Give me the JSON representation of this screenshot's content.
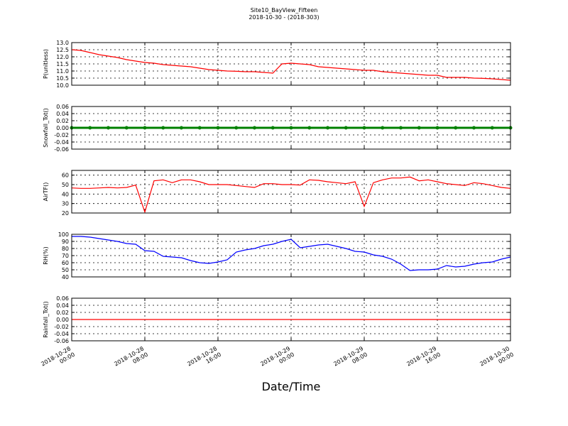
{
  "chart_data": [
    {
      "type": "line",
      "title": "Site10_BayView_Fifteen",
      "subtitle": "2018-10-30 - (2018-303)",
      "y_label": "P(unitless)",
      "color": "#ff0000",
      "x": [
        "2018-10-28 00:00",
        "2018-10-28 01:00",
        "2018-10-28 02:00",
        "2018-10-28 03:00",
        "2018-10-28 04:00",
        "2018-10-28 05:00",
        "2018-10-28 06:00",
        "2018-10-28 07:00",
        "2018-10-28 08:00",
        "2018-10-28 09:00",
        "2018-10-28 10:00",
        "2018-10-28 11:00",
        "2018-10-28 12:00",
        "2018-10-28 13:00",
        "2018-10-28 14:00",
        "2018-10-28 15:00",
        "2018-10-28 16:00",
        "2018-10-28 17:00",
        "2018-10-28 18:00",
        "2018-10-28 19:00",
        "2018-10-28 20:00",
        "2018-10-28 21:00",
        "2018-10-28 22:00",
        "2018-10-28 23:00",
        "2018-10-29 00:00",
        "2018-10-29 01:00",
        "2018-10-29 02:00",
        "2018-10-29 03:00",
        "2018-10-29 04:00",
        "2018-10-29 05:00",
        "2018-10-29 06:00",
        "2018-10-29 07:00",
        "2018-10-29 08:00",
        "2018-10-29 09:00",
        "2018-10-29 10:00",
        "2018-10-29 11:00",
        "2018-10-29 12:00",
        "2018-10-29 13:00",
        "2018-10-29 14:00",
        "2018-10-29 15:00",
        "2018-10-29 16:00",
        "2018-10-29 17:00",
        "2018-10-29 18:00",
        "2018-10-29 19:00",
        "2018-10-29 20:00",
        "2018-10-29 21:00",
        "2018-10-29 22:00",
        "2018-10-29 23:00",
        "2018-10-30 00:00"
      ],
      "values": [
        12.5,
        12.45,
        12.3,
        12.15,
        12.05,
        11.95,
        11.8,
        11.7,
        11.6,
        11.55,
        11.45,
        11.4,
        11.35,
        11.3,
        11.2,
        11.1,
        11.05,
        11.0,
        10.98,
        10.95,
        10.95,
        10.9,
        10.85,
        11.5,
        11.55,
        11.5,
        11.45,
        11.3,
        11.25,
        11.2,
        11.15,
        11.1,
        11.05,
        11.05,
        10.95,
        10.9,
        10.85,
        10.8,
        10.75,
        10.7,
        10.7,
        10.55,
        10.55,
        10.55,
        10.5,
        10.48,
        10.45,
        10.4,
        10.35
      ],
      "xlim": [
        "2018-10-28 00:00",
        "2018-10-30 00:00"
      ],
      "xticks": [
        "2018-10-28 00:00",
        "2018-10-28 08:00",
        "2018-10-28 16:00",
        "2018-10-29 00:00",
        "2018-10-29 08:00",
        "2018-10-29 16:00",
        "2018-10-30 00:00"
      ],
      "ylim": [
        10,
        13
      ],
      "yticks": [
        {
          "value": 10,
          "label": "10.0"
        },
        10.5,
        {
          "value": 11,
          "label": "11.0"
        },
        11.5,
        {
          "value": 12,
          "label": "12.0"
        },
        12.5,
        {
          "value": 13,
          "label": "13.0"
        }
      ],
      "grid": true
    },
    {
      "type": "line",
      "y_label": "Snowfall_Tot()",
      "color": "#008000",
      "markers": true,
      "x": [
        "2018-10-28 00:00",
        "2018-10-28 02:00",
        "2018-10-28 04:00",
        "2018-10-28 06:00",
        "2018-10-28 08:00",
        "2018-10-28 10:00",
        "2018-10-28 12:00",
        "2018-10-28 14:00",
        "2018-10-28 16:00",
        "2018-10-28 18:00",
        "2018-10-28 20:00",
        "2018-10-28 22:00",
        "2018-10-29 00:00",
        "2018-10-29 02:00",
        "2018-10-29 04:00",
        "2018-10-29 06:00",
        "2018-10-29 08:00",
        "2018-10-29 10:00",
        "2018-10-29 12:00",
        "2018-10-29 14:00",
        "2018-10-29 16:00",
        "2018-10-29 18:00",
        "2018-10-29 20:00",
        "2018-10-29 22:00",
        "2018-10-30 00:00"
      ],
      "values": [
        0,
        0,
        0,
        0,
        0,
        0,
        0,
        0,
        0,
        0,
        0,
        0,
        0,
        0,
        0,
        0,
        0,
        0,
        0,
        0,
        0,
        0,
        0,
        0,
        0
      ],
      "xlim": [
        "2018-10-28 00:00",
        "2018-10-30 00:00"
      ],
      "xticks": [
        "2018-10-28 00:00",
        "2018-10-28 08:00",
        "2018-10-28 16:00",
        "2018-10-29 00:00",
        "2018-10-29 08:00",
        "2018-10-29 16:00",
        "2018-10-30 00:00"
      ],
      "ylim": [
        -0.06,
        0.06
      ],
      "yticks": [
        -0.06,
        -0.04,
        -0.02,
        {
          "value": 0,
          "label": "0.00"
        },
        0.02,
        0.04,
        0.06
      ],
      "grid": true
    },
    {
      "type": "line",
      "y_label": "AirTF()",
      "color": "#ff0000",
      "x": [
        "2018-10-28 00:00",
        "2018-10-28 01:00",
        "2018-10-28 02:00",
        "2018-10-28 03:00",
        "2018-10-28 04:00",
        "2018-10-28 05:00",
        "2018-10-28 06:00",
        "2018-10-28 07:00",
        "2018-10-28 08:00",
        "2018-10-28 09:00",
        "2018-10-28 10:00",
        "2018-10-28 11:00",
        "2018-10-28 12:00",
        "2018-10-28 13:00",
        "2018-10-28 14:00",
        "2018-10-28 15:00",
        "2018-10-28 16:00",
        "2018-10-28 17:00",
        "2018-10-28 18:00",
        "2018-10-28 19:00",
        "2018-10-28 20:00",
        "2018-10-28 21:00",
        "2018-10-28 22:00",
        "2018-10-28 23:00",
        "2018-10-29 00:00",
        "2018-10-29 01:00",
        "2018-10-29 02:00",
        "2018-10-29 03:00",
        "2018-10-29 04:00",
        "2018-10-29 05:00",
        "2018-10-29 06:00",
        "2018-10-29 07:00",
        "2018-10-29 08:00",
        "2018-10-29 09:00",
        "2018-10-29 10:00",
        "2018-10-29 11:00",
        "2018-10-29 12:00",
        "2018-10-29 13:00",
        "2018-10-29 14:00",
        "2018-10-29 15:00",
        "2018-10-29 16:00",
        "2018-10-29 17:00",
        "2018-10-29 18:00",
        "2018-10-29 19:00",
        "2018-10-29 20:00",
        "2018-10-29 21:00",
        "2018-10-29 22:00",
        "2018-10-29 23:00",
        "2018-10-30 00:00"
      ],
      "values": [
        46.5,
        46,
        46,
        46.5,
        47,
        46.5,
        47,
        49.5,
        21,
        54,
        55,
        52,
        55,
        55,
        53,
        50,
        50,
        50,
        49,
        48,
        47,
        51,
        51,
        50,
        50,
        49.5,
        55,
        54.5,
        53,
        52,
        51,
        53,
        27,
        52,
        55,
        57,
        57,
        58,
        54,
        55,
        53,
        51,
        50,
        49,
        52,
        51,
        49,
        47,
        46
      ],
      "xlim": [
        "2018-10-28 00:00",
        "2018-10-30 00:00"
      ],
      "xticks": [
        "2018-10-28 00:00",
        "2018-10-28 08:00",
        "2018-10-28 16:00",
        "2018-10-29 00:00",
        "2018-10-29 08:00",
        "2018-10-29 16:00",
        "2018-10-30 00:00"
      ],
      "ylim": [
        20,
        65
      ],
      "yticks": [
        20,
        30,
        40,
        50,
        60
      ],
      "grid": true
    },
    {
      "type": "line",
      "y_label": "RH(%)",
      "color": "#0000ff",
      "x": [
        "2018-10-28 00:00",
        "2018-10-28 01:00",
        "2018-10-28 02:00",
        "2018-10-28 03:00",
        "2018-10-28 04:00",
        "2018-10-28 05:00",
        "2018-10-28 06:00",
        "2018-10-28 07:00",
        "2018-10-28 08:00",
        "2018-10-28 09:00",
        "2018-10-28 10:00",
        "2018-10-28 11:00",
        "2018-10-28 12:00",
        "2018-10-28 13:00",
        "2018-10-28 14:00",
        "2018-10-28 15:00",
        "2018-10-28 16:00",
        "2018-10-28 17:00",
        "2018-10-28 18:00",
        "2018-10-28 19:00",
        "2018-10-28 20:00",
        "2018-10-28 21:00",
        "2018-10-28 22:00",
        "2018-10-28 23:00",
        "2018-10-29 00:00",
        "2018-10-29 01:00",
        "2018-10-29 02:00",
        "2018-10-29 03:00",
        "2018-10-29 04:00",
        "2018-10-29 05:00",
        "2018-10-29 06:00",
        "2018-10-29 07:00",
        "2018-10-29 08:00",
        "2018-10-29 09:00",
        "2018-10-29 10:00",
        "2018-10-29 11:00",
        "2018-10-29 12:00",
        "2018-10-29 13:00",
        "2018-10-29 14:00",
        "2018-10-29 15:00",
        "2018-10-29 16:00",
        "2018-10-29 17:00",
        "2018-10-29 18:00",
        "2018-10-29 19:00",
        "2018-10-29 20:00",
        "2018-10-29 21:00",
        "2018-10-29 22:00",
        "2018-10-29 23:00",
        "2018-10-30 00:00"
      ],
      "values": [
        97,
        97,
        96,
        94,
        92,
        90,
        87,
        86,
        77,
        76,
        69,
        68,
        67,
        63,
        60,
        59,
        61,
        64,
        75,
        78,
        80,
        84,
        86,
        90,
        93,
        81,
        83,
        85,
        86,
        83,
        80,
        76,
        75,
        71,
        69,
        65,
        58,
        49,
        50,
        50,
        51,
        56,
        54,
        55,
        58,
        60,
        61,
        65,
        68
      ],
      "xlim": [
        "2018-10-28 00:00",
        "2018-10-30 00:00"
      ],
      "xticks": [
        "2018-10-28 00:00",
        "2018-10-28 08:00",
        "2018-10-28 16:00",
        "2018-10-29 00:00",
        "2018-10-29 08:00",
        "2018-10-29 16:00",
        "2018-10-30 00:00"
      ],
      "ylim": [
        40,
        100
      ],
      "yticks": [
        40,
        50,
        60,
        70,
        80,
        90,
        100
      ],
      "grid": true
    },
    {
      "type": "line",
      "y_label": "Rainfall_Tot()",
      "x_label": "Date/Time",
      "color": "#ff0000",
      "x": [
        "2018-10-28 00:00",
        "2018-10-28 02:00",
        "2018-10-28 04:00",
        "2018-10-28 06:00",
        "2018-10-28 08:00",
        "2018-10-28 10:00",
        "2018-10-28 12:00",
        "2018-10-28 14:00",
        "2018-10-28 16:00",
        "2018-10-28 18:00",
        "2018-10-28 20:00",
        "2018-10-28 22:00",
        "2018-10-29 00:00",
        "2018-10-29 02:00",
        "2018-10-29 04:00",
        "2018-10-29 06:00",
        "2018-10-29 08:00",
        "2018-10-29 10:00",
        "2018-10-29 12:00",
        "2018-10-29 14:00",
        "2018-10-29 16:00",
        "2018-10-29 18:00",
        "2018-10-29 20:00",
        "2018-10-29 22:00",
        "2018-10-30 00:00"
      ],
      "values": [
        0,
        0,
        0,
        0,
        0,
        0,
        0,
        0,
        0,
        0,
        0,
        0,
        0,
        0,
        0,
        0,
        0,
        0,
        0,
        0,
        0,
        0,
        0,
        0,
        0
      ],
      "xlim": [
        "2018-10-28 00:00",
        "2018-10-30 00:00"
      ],
      "xticks": [
        {
          "value": "2018-10-28 00:00",
          "label": "2018-10-28\n00:00"
        },
        {
          "value": "2018-10-28 08:00",
          "label": "2018-10-28\n08:00"
        },
        {
          "value": "2018-10-28 16:00",
          "label": "2018-10-28\n16:00"
        },
        {
          "value": "2018-10-29 00:00",
          "label": "2018-10-29\n00:00"
        },
        {
          "value": "2018-10-29 08:00",
          "label": "2018-10-29\n08:00"
        },
        {
          "value": "2018-10-29 16:00",
          "label": "2018-10-29\n16:00"
        },
        {
          "value": "2018-10-30 00:00",
          "label": "2018-10-30\n00:00"
        }
      ],
      "ylim": [
        -0.06,
        0.06
      ],
      "yticks": [
        -0.06,
        -0.04,
        -0.02,
        {
          "value": 0,
          "label": "0.00"
        },
        0.02,
        0.04,
        0.06
      ],
      "grid": true
    }
  ]
}
